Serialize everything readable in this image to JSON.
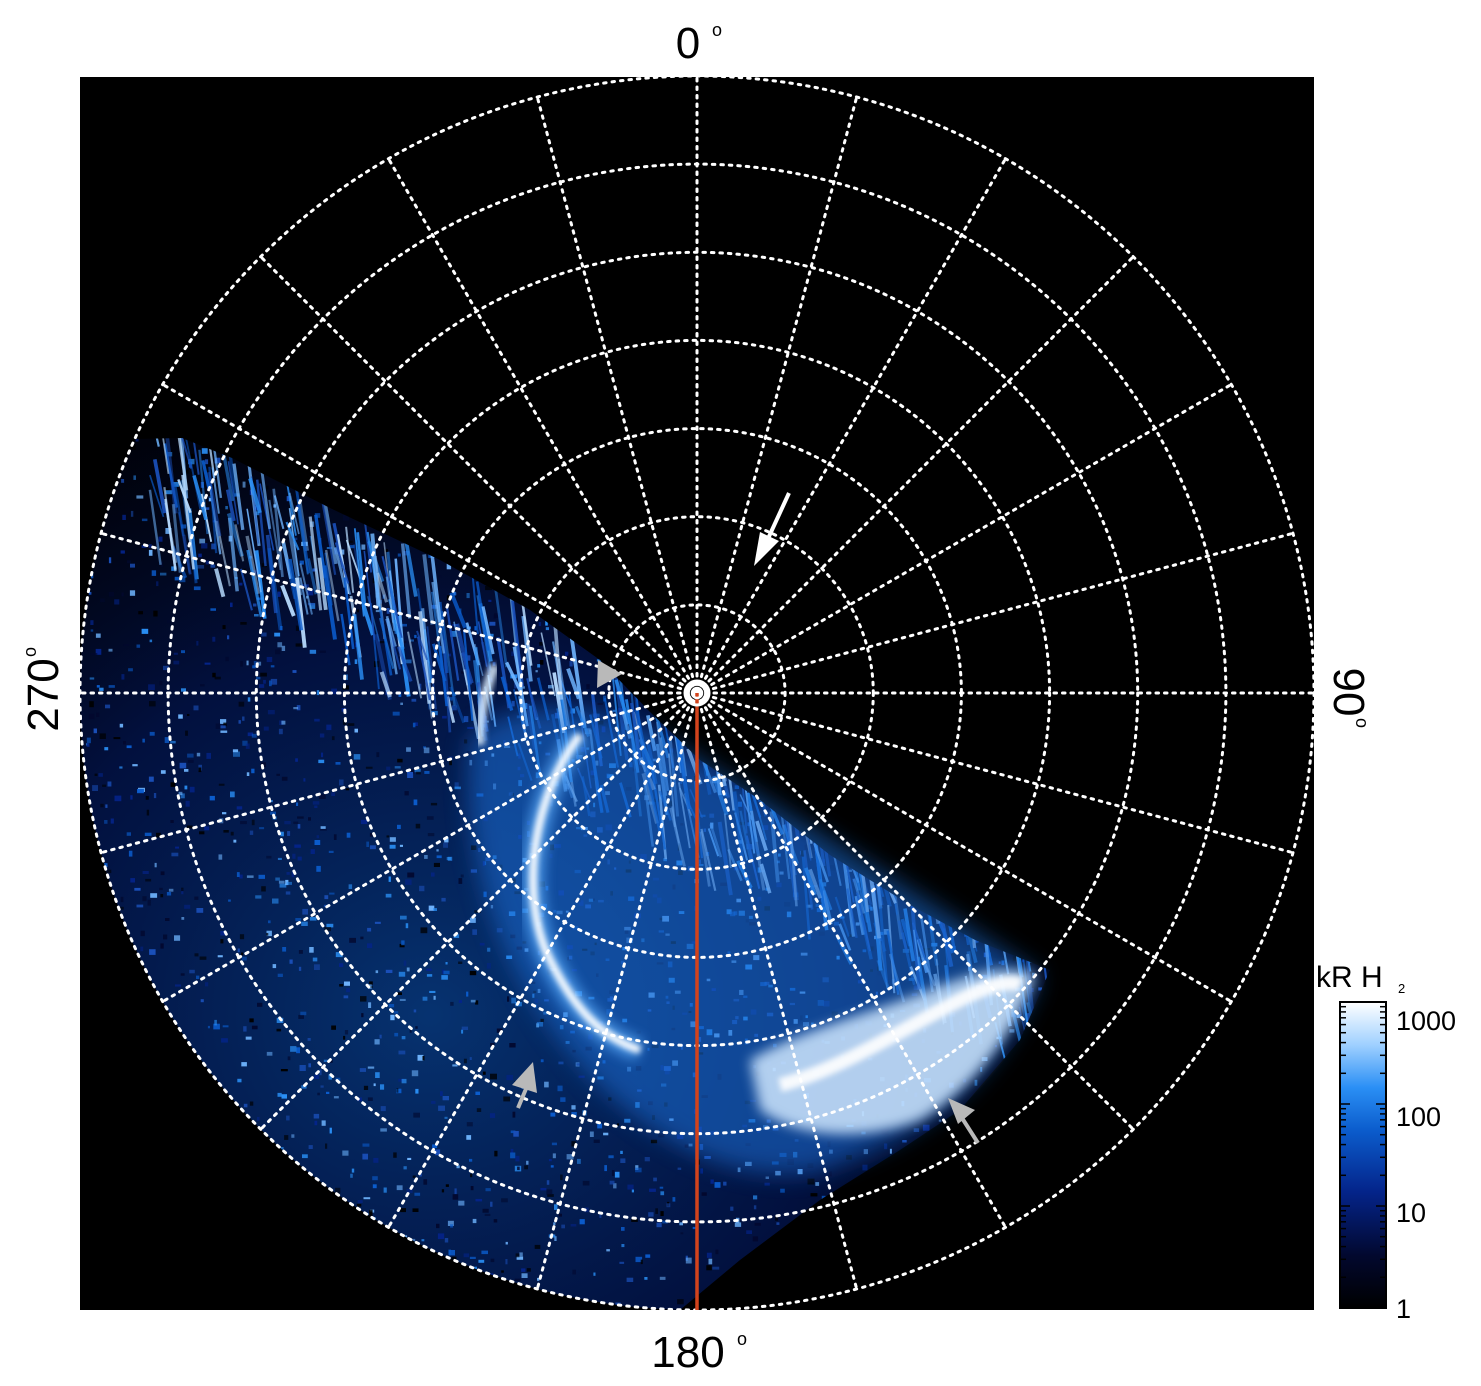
{
  "direction_labels": {
    "top": "0",
    "right": "90",
    "bottom": "180",
    "left": "270",
    "degree_symbol": "o"
  },
  "colorbar": {
    "unit_main": "kR H",
    "unit_sub": "2",
    "ticks": [
      "1000",
      "100",
      "10",
      "1"
    ],
    "scale": "log",
    "colors": [
      "#000000",
      "#02082e",
      "#04248a",
      "#0b5ccc",
      "#2a8ff5",
      "#9fd0ff",
      "#ffffff"
    ]
  },
  "colors": {
    "background": "#000000",
    "grid": "#ffffff",
    "meridian_line": "#d2431c",
    "arrow_white": "#ffffff",
    "arrow_grey": "#b9b9b9"
  },
  "grid": {
    "style": "dotted",
    "meridian_step_deg": 15,
    "latitude_circles": 7
  }
}
